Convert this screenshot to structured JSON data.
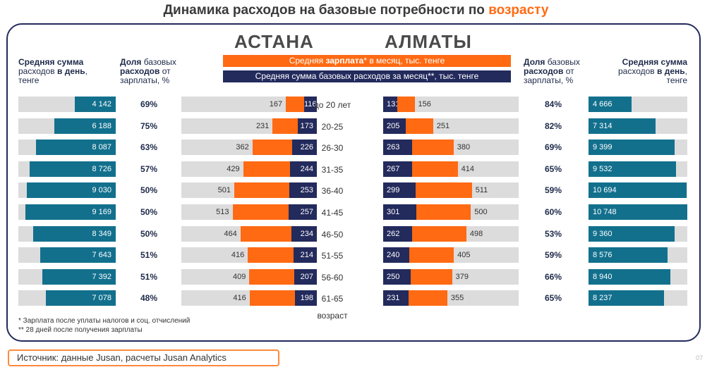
{
  "title_main": "Динамика расходов на базовые потребности по ",
  "title_highlight": "возрасту",
  "cities": {
    "left": "АСТАНА",
    "right": "АЛМАТЫ"
  },
  "legend": {
    "salary_pre": "Средняя ",
    "salary_bold": "зарплата",
    "salary_post": "* в месяц, тыс. тенге",
    "expenses": "Средняя сумма базовых расходов за месяц**, тыс. тенге"
  },
  "headers": {
    "daily_left": {
      "line1": "Средняя сумма",
      "line2_pre": "расходов ",
      "line2_bold": "в день",
      "line2_post": ",",
      "line3": "тенге"
    },
    "share_left": {
      "line1_bold": "Доля",
      "line1_post": " базовых",
      "line2_bold": "расходов",
      "line2_post": " от",
      "line3": "зарплаты, %"
    },
    "share_right": {
      "line1_bold": "Доля",
      "line1_post": " базовых",
      "line2_bold": "расходов",
      "line2_post": " от",
      "line3": "зарплаты, %"
    },
    "daily_right": {
      "line1": "Средняя сумма",
      "line2_pre": "расходов ",
      "line2_bold": "в день",
      "line2_post": ",",
      "line3": "тенге"
    }
  },
  "age_axis_label": "возраст",
  "footnotes": [
    "* Зарплата после уплаты налогов и соц. отчислений",
    "** 28 дней после получения зарплаты"
  ],
  "source": "Источник: данные Jusan, расчеты Jusan Analytics",
  "page_number": "07",
  "colors": {
    "teal": "#12708d",
    "navy": "#232a5c",
    "orange": "#ff6a13",
    "gray": "#dcdcdc"
  },
  "chart_data": {
    "type": "bar",
    "categories": [
      "до 20 лет",
      "20-25",
      "26-30",
      "31-35",
      "36-40",
      "41-45",
      "46-50",
      "51-55",
      "56-60",
      "61-65"
    ],
    "astana": {
      "daily_expenses": [
        4142,
        6188,
        8087,
        8726,
        9030,
        9169,
        8349,
        7643,
        7392,
        7078
      ],
      "daily_labels": [
        "4 142",
        "6 188",
        "8 087",
        "8 726",
        "9 030",
        "9 169",
        "8 349",
        "7 643",
        "7 392",
        "7 078"
      ],
      "share_pct": [
        "69%",
        "75%",
        "63%",
        "57%",
        "50%",
        "50%",
        "50%",
        "51%",
        "51%",
        "48%"
      ],
      "salary": [
        167,
        231,
        362,
        429,
        501,
        513,
        464,
        416,
        409,
        416
      ],
      "expenses": [
        116,
        173,
        226,
        244,
        253,
        257,
        234,
        214,
        207,
        198
      ]
    },
    "almaty": {
      "daily_expenses": [
        4666,
        7314,
        9399,
        9532,
        10694,
        10748,
        9360,
        8576,
        8940,
        8237
      ],
      "daily_labels": [
        "4 666",
        "7 314",
        "9 399",
        "9 532",
        "10 694",
        "10 748",
        "9 360",
        "8 576",
        "8 940",
        "8 237"
      ],
      "share_pct": [
        "84%",
        "82%",
        "69%",
        "65%",
        "59%",
        "60%",
        "53%",
        "59%",
        "66%",
        "65%"
      ],
      "salary": [
        156,
        251,
        380,
        414,
        511,
        500,
        498,
        405,
        379,
        355
      ],
      "expenses": [
        131,
        205,
        263,
        267,
        299,
        301,
        262,
        240,
        250,
        231
      ]
    }
  }
}
